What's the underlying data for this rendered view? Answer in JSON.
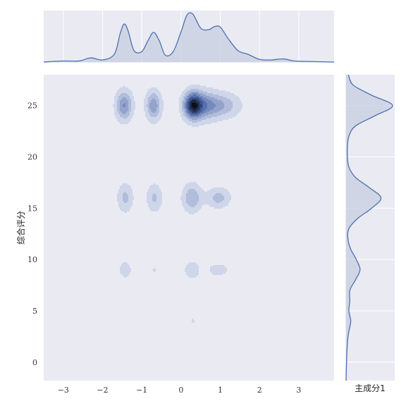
{
  "chart_data": {
    "type": "kde-jointplot",
    "xlabel": "主成分1",
    "ylabel": "综合评分",
    "xlim": [
      -3.5,
      3.9
    ],
    "ylim": [
      -1.8,
      28.0
    ],
    "x_ticks": [
      -3,
      -2,
      -1,
      0,
      1,
      2,
      3
    ],
    "y_ticks": [
      0,
      5,
      10,
      15,
      20,
      25
    ],
    "grid": true,
    "colors": {
      "background": "#EAEAF2",
      "line": "#4C72B0",
      "fill": "#C7CEE0",
      "contour_dark": "#0b0e1a",
      "contour_light": "#cfd6ea"
    },
    "joint_clusters": [
      {
        "x": -1.45,
        "y": 25.0,
        "weight": 0.55,
        "sx": 0.14,
        "sy": 0.95
      },
      {
        "x": -0.7,
        "y": 25.0,
        "weight": 0.5,
        "sx": 0.13,
        "sy": 0.95
      },
      {
        "x": 0.3,
        "y": 25.0,
        "weight": 1.0,
        "sx": 0.15,
        "sy": 0.85
      },
      {
        "x": 0.55,
        "y": 25.0,
        "weight": 0.55,
        "sx": 0.25,
        "sy": 0.9
      },
      {
        "x": 1.05,
        "y": 25.0,
        "weight": 0.35,
        "sx": 0.3,
        "sy": 0.8
      },
      {
        "x": -1.42,
        "y": 16.0,
        "weight": 0.28,
        "sx": 0.13,
        "sy": 0.9
      },
      {
        "x": -0.68,
        "y": 16.0,
        "weight": 0.26,
        "sx": 0.13,
        "sy": 0.9
      },
      {
        "x": 0.28,
        "y": 16.0,
        "weight": 0.38,
        "sx": 0.16,
        "sy": 0.9
      },
      {
        "x": 0.95,
        "y": 16.0,
        "weight": 0.3,
        "sx": 0.2,
        "sy": 0.65
      },
      {
        "x": -1.42,
        "y": 9.0,
        "weight": 0.14,
        "sx": 0.13,
        "sy": 0.7
      },
      {
        "x": -0.68,
        "y": 9.0,
        "weight": 0.09,
        "sx": 0.09,
        "sy": 0.5
      },
      {
        "x": 0.28,
        "y": 9.0,
        "weight": 0.2,
        "sx": 0.13,
        "sy": 0.6
      },
      {
        "x": 0.95,
        "y": 9.0,
        "weight": 0.14,
        "sx": 0.22,
        "sy": 0.5
      },
      {
        "x": 0.3,
        "y": 4.0,
        "weight": 0.09,
        "sx": 0.09,
        "sy": 0.45
      }
    ],
    "marginal_x": {
      "x": [
        -3.5,
        -3.0,
        -2.6,
        -2.3,
        -2.0,
        -1.7,
        -1.55,
        -1.45,
        -1.35,
        -1.2,
        -1.0,
        -0.85,
        -0.7,
        -0.55,
        -0.4,
        -0.2,
        0.0,
        0.15,
        0.3,
        0.5,
        0.7,
        0.85,
        1.0,
        1.2,
        1.45,
        1.7,
        2.0,
        2.3,
        2.6,
        2.9,
        3.3,
        3.9
      ],
      "density": [
        0.0,
        0.02,
        0.02,
        0.08,
        0.04,
        0.15,
        0.55,
        0.73,
        0.6,
        0.22,
        0.2,
        0.4,
        0.57,
        0.4,
        0.13,
        0.2,
        0.58,
        0.9,
        0.92,
        0.65,
        0.62,
        0.68,
        0.67,
        0.45,
        0.22,
        0.15,
        0.05,
        0.04,
        0.06,
        0.02,
        0.01,
        0.0
      ]
    },
    "marginal_y": {
      "y": [
        -1.8,
        0.0,
        2.0,
        3.0,
        4.0,
        5.0,
        6.0,
        7.0,
        8.0,
        9.0,
        10.0,
        11.0,
        12.0,
        13.0,
        14.0,
        15.0,
        16.0,
        17.0,
        18.0,
        19.0,
        20.0,
        21.0,
        22.0,
        23.0,
        24.0,
        25.0,
        26.0,
        27.0,
        28.0
      ],
      "density": [
        0.0,
        0.01,
        0.03,
        0.06,
        0.1,
        0.06,
        0.08,
        0.08,
        0.2,
        0.3,
        0.22,
        0.1,
        0.04,
        0.06,
        0.25,
        0.55,
        0.75,
        0.5,
        0.2,
        0.06,
        0.03,
        0.03,
        0.06,
        0.2,
        0.62,
        1.0,
        0.55,
        0.15,
        0.05
      ]
    }
  }
}
